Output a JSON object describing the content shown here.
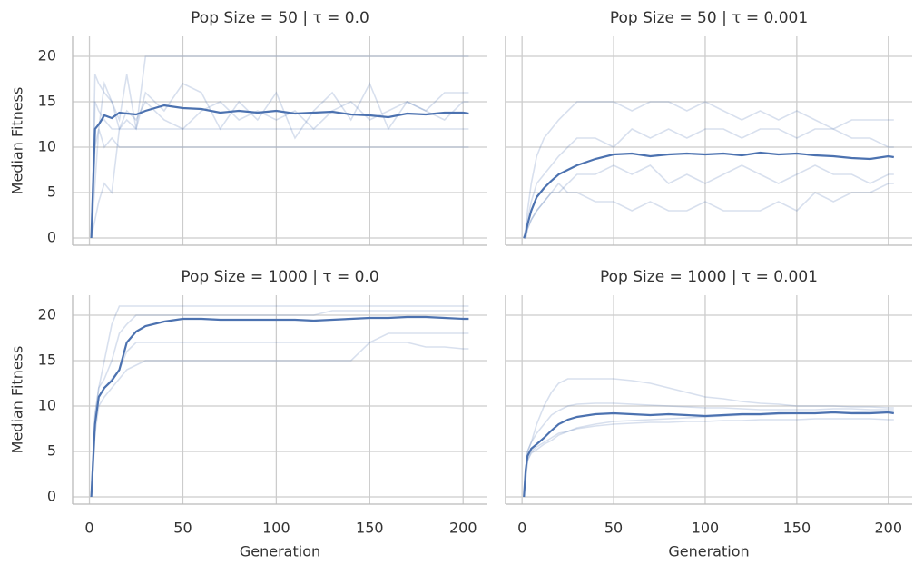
{
  "chart_data": [
    {
      "type": "line",
      "title": "Pop Size = 50 | τ = 0.0",
      "ylabel": "Median Fitness",
      "x": [
        1,
        2,
        3,
        5,
        8,
        12,
        16,
        20,
        25,
        30,
        40,
        50,
        60,
        70,
        80,
        90,
        100,
        110,
        120,
        130,
        140,
        150,
        160,
        170,
        180,
        190,
        200,
        203
      ],
      "xlim": [
        -9,
        213
      ],
      "ylim": [
        -0.8,
        22.2
      ],
      "xticks": [
        0,
        50,
        100,
        150,
        200
      ],
      "yticks": [
        0,
        5,
        10,
        15,
        20
      ],
      "show_xticklabels": false,
      "show_yticklabels": true,
      "grid": true,
      "series": [
        {
          "color": "#4c72b0",
          "opacity": 0.22,
          "values": [
            0,
            8,
            18,
            17,
            16,
            15,
            12,
            13,
            12,
            20,
            20,
            20,
            20,
            20,
            20,
            20,
            20,
            20,
            20,
            20,
            20,
            20,
            20,
            20,
            20,
            20,
            20,
            20
          ]
        },
        {
          "color": "#4c72b0",
          "opacity": 0.22,
          "values": [
            0,
            4,
            10,
            12,
            10,
            11,
            10,
            10,
            10,
            10,
            10,
            10,
            10,
            10,
            10,
            10,
            10,
            10,
            10,
            10,
            10,
            10,
            10,
            10,
            10,
            10,
            10,
            10
          ]
        },
        {
          "color": "#4c72b0",
          "opacity": 0.22,
          "values": [
            0,
            3,
            6,
            12,
            17,
            15,
            13,
            18,
            12,
            16,
            14,
            17,
            16,
            12,
            15,
            13,
            16,
            11,
            14,
            16,
            13,
            17,
            12,
            15,
            14,
            16,
            16,
            16
          ]
        },
        {
          "color": "#4c72b0",
          "opacity": 0.22,
          "values": [
            0,
            1,
            2,
            4,
            6,
            5,
            12,
            14,
            13,
            15,
            13,
            12,
            14,
            15,
            13,
            14,
            13,
            14,
            12,
            14,
            15,
            13,
            14,
            15,
            14,
            13,
            15,
            15
          ]
        },
        {
          "color": "#4c72b0",
          "opacity": 0.22,
          "values": [
            0,
            5,
            15,
            14,
            13,
            12,
            12,
            12,
            12,
            12,
            12,
            12,
            12,
            12,
            12,
            12,
            12,
            12,
            12,
            12,
            12,
            12,
            12,
            12,
            12,
            12,
            12,
            12
          ]
        },
        {
          "color": "#4c72b0",
          "opacity": 1,
          "values": [
            0,
            6,
            12,
            12.5,
            13.5,
            13.2,
            13.8,
            13.7,
            13.6,
            14,
            14.6,
            14.3,
            14.2,
            13.8,
            14,
            13.8,
            14,
            13.7,
            13.8,
            13.9,
            13.6,
            13.5,
            13.3,
            13.7,
            13.6,
            13.8,
            13.8,
            13.7
          ]
        }
      ]
    },
    {
      "type": "line",
      "title": "Pop Size = 50 | τ = 0.001",
      "x": [
        1,
        2,
        3,
        5,
        8,
        12,
        16,
        20,
        25,
        30,
        40,
        50,
        60,
        70,
        80,
        90,
        100,
        110,
        120,
        130,
        140,
        150,
        160,
        170,
        180,
        190,
        200,
        203
      ],
      "xlim": [
        -9,
        213
      ],
      "ylim": [
        -0.8,
        22.2
      ],
      "xticks": [
        0,
        50,
        100,
        150,
        200
      ],
      "yticks": [
        0,
        5,
        10,
        15,
        20
      ],
      "show_xticklabels": false,
      "show_yticklabels": false,
      "grid": true,
      "series": [
        {
          "color": "#4c72b0",
          "opacity": 0.22,
          "values": [
            0,
            1,
            3,
            6,
            9,
            11,
            12,
            13,
            14,
            15,
            15,
            15,
            14,
            15,
            15,
            14,
            15,
            14,
            13,
            14,
            13,
            14,
            13,
            12,
            13,
            13,
            13,
            13
          ]
        },
        {
          "color": "#4c72b0",
          "opacity": 0.22,
          "values": [
            0,
            0,
            1,
            2,
            3,
            4,
            5,
            6,
            5,
            5,
            4,
            4,
            3,
            4,
            3,
            3,
            4,
            3,
            3,
            3,
            4,
            3,
            5,
            4,
            5,
            5,
            6,
            6
          ]
        },
        {
          "color": "#4c72b0",
          "opacity": 0.22,
          "values": [
            0,
            1,
            2,
            4,
            6,
            7,
            8,
            9,
            10,
            11,
            11,
            10,
            12,
            11,
            12,
            11,
            12,
            12,
            11,
            12,
            12,
            11,
            12,
            12,
            11,
            11,
            10,
            10
          ]
        },
        {
          "color": "#4c72b0",
          "opacity": 0.22,
          "values": [
            0,
            0,
            1,
            2,
            3,
            4,
            5,
            5,
            6,
            7,
            7,
            8,
            7,
            8,
            6,
            7,
            6,
            7,
            8,
            7,
            6,
            7,
            8,
            7,
            7,
            6,
            7,
            7
          ]
        },
        {
          "color": "#4c72b0",
          "opacity": 1,
          "values": [
            0,
            0.5,
            1.5,
            3,
            4.5,
            5.5,
            6.3,
            7,
            7.5,
            8,
            8.7,
            9.2,
            9.3,
            9.0,
            9.2,
            9.3,
            9.2,
            9.3,
            9.1,
            9.4,
            9.2,
            9.3,
            9.1,
            9.0,
            8.8,
            8.7,
            9.0,
            8.9
          ]
        }
      ]
    },
    {
      "type": "line",
      "title": "Pop Size = 1000 | τ = 0.0",
      "ylabel": "Median Fitness",
      "xlabel": "Generation",
      "x": [
        1,
        2,
        3,
        5,
        8,
        12,
        16,
        20,
        25,
        30,
        40,
        50,
        60,
        70,
        80,
        90,
        100,
        110,
        120,
        130,
        140,
        150,
        160,
        170,
        180,
        190,
        200,
        203
      ],
      "xlim": [
        -9,
        213
      ],
      "ylim": [
        -0.8,
        22.2
      ],
      "xticks": [
        0,
        50,
        100,
        150,
        200
      ],
      "yticks": [
        0,
        5,
        10,
        15,
        20
      ],
      "show_xticklabels": true,
      "show_yticklabels": true,
      "grid": true,
      "series": [
        {
          "color": "#4c72b0",
          "opacity": 0.22,
          "values": [
            0,
            5,
            9,
            12,
            15,
            19,
            21,
            21,
            21,
            21,
            21,
            21,
            21,
            21,
            21,
            21,
            21,
            21,
            21,
            21,
            21,
            21,
            21,
            21,
            21,
            21,
            21,
            21
          ]
        },
        {
          "color": "#4c72b0",
          "opacity": 0.22,
          "values": [
            0,
            3,
            7,
            10,
            11,
            12,
            13,
            14,
            14.5,
            15,
            15,
            15,
            15,
            15,
            15,
            15,
            15,
            15,
            15,
            15,
            15,
            17,
            18,
            18,
            18,
            18,
            18,
            18
          ]
        },
        {
          "color": "#4c72b0",
          "opacity": 0.22,
          "values": [
            0,
            4,
            8,
            11,
            12,
            13,
            14,
            16,
            17,
            17,
            17,
            17,
            17,
            17,
            17,
            17,
            17,
            17,
            17,
            17,
            17,
            17,
            17,
            17,
            16.5,
            16.5,
            16.3,
            16.3
          ]
        },
        {
          "color": "#4c72b0",
          "opacity": 0.22,
          "values": [
            0,
            4,
            9,
            12,
            13,
            15,
            18,
            19,
            20,
            20,
            20,
            20,
            20,
            20,
            20,
            20,
            20,
            20,
            20,
            20.5,
            20.5,
            20.5,
            20.5,
            20.5,
            20.5,
            20.5,
            20.5,
            20.5
          ]
        },
        {
          "color": "#4c72b0",
          "opacity": 1,
          "values": [
            0,
            4,
            8,
            11,
            12,
            12.8,
            14,
            17,
            18.2,
            18.8,
            19.3,
            19.6,
            19.6,
            19.5,
            19.5,
            19.5,
            19.5,
            19.5,
            19.4,
            19.5,
            19.6,
            19.7,
            19.7,
            19.8,
            19.8,
            19.7,
            19.6,
            19.6
          ]
        }
      ]
    },
    {
      "type": "line",
      "title": "Pop Size = 1000 | τ = 0.001",
      "xlabel": "Generation",
      "x": [
        1,
        2,
        3,
        5,
        8,
        12,
        16,
        20,
        25,
        30,
        40,
        50,
        60,
        70,
        80,
        90,
        100,
        110,
        120,
        130,
        140,
        150,
        160,
        170,
        180,
        190,
        200,
        203
      ],
      "xlim": [
        -9,
        213
      ],
      "ylim": [
        -0.8,
        22.2
      ],
      "xticks": [
        0,
        50,
        100,
        150,
        200
      ],
      "yticks": [
        0,
        5,
        10,
        15,
        20
      ],
      "show_xticklabels": true,
      "show_yticklabels": false,
      "grid": true,
      "series": [
        {
          "color": "#4c72b0",
          "opacity": 0.22,
          "values": [
            0,
            3,
            5,
            6,
            8,
            10,
            11.5,
            12.5,
            13,
            13,
            13,
            13,
            12.8,
            12.5,
            12,
            11.5,
            11,
            10.8,
            10.5,
            10.3,
            10.2,
            10,
            10,
            10,
            9.9,
            9.9,
            9.8,
            9.8
          ]
        },
        {
          "color": "#4c72b0",
          "opacity": 0.22,
          "values": [
            0,
            2,
            4,
            5,
            5.5,
            6,
            6.5,
            7,
            7.2,
            7.5,
            7.8,
            8,
            8.1,
            8.2,
            8.2,
            8.3,
            8.3,
            8.4,
            8.4,
            8.5,
            8.5,
            8.5,
            8.6,
            8.6,
            8.6,
            8.6,
            8.5,
            8.5
          ]
        },
        {
          "color": "#4c72b0",
          "opacity": 0.22,
          "values": [
            0,
            3,
            5,
            6,
            7,
            8,
            9,
            9.5,
            10,
            10.2,
            10.3,
            10.3,
            10.2,
            10.1,
            10,
            9.9,
            9.8,
            9.8,
            9.7,
            9.6,
            9.6,
            9.6,
            9.6,
            9.7,
            9.7,
            9.6,
            9.6,
            9.6
          ]
        },
        {
          "color": "#4c72b0",
          "opacity": 0.22,
          "values": [
            0,
            2,
            4,
            4.8,
            5.2,
            5.8,
            6.2,
            6.8,
            7.2,
            7.6,
            8,
            8.3,
            8.4,
            8.5,
            8.6,
            8.7,
            8.8,
            8.9,
            9,
            9,
            9.1,
            9.2,
            9.2,
            9.3,
            9.3,
            9.4,
            9.4,
            9.4
          ]
        },
        {
          "color": "#4c72b0",
          "opacity": 1,
          "values": [
            0,
            3,
            4.5,
            5.3,
            5.8,
            6.5,
            7.3,
            8,
            8.5,
            8.8,
            9.1,
            9.2,
            9.1,
            9.0,
            9.1,
            9.0,
            8.9,
            9.0,
            9.1,
            9.1,
            9.2,
            9.2,
            9.2,
            9.3,
            9.2,
            9.2,
            9.3,
            9.2
          ]
        }
      ]
    }
  ]
}
